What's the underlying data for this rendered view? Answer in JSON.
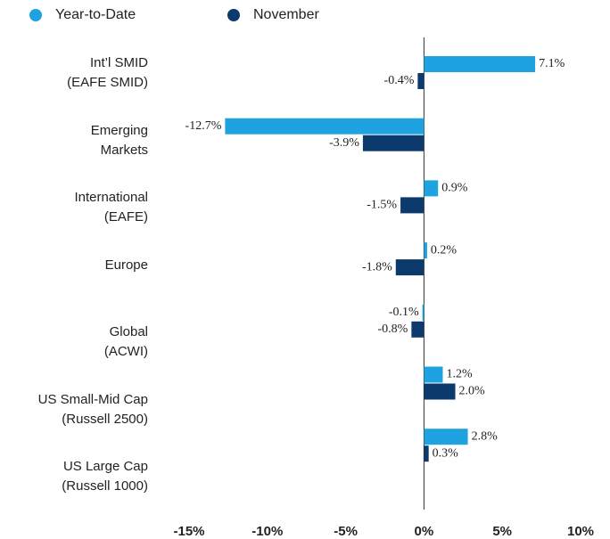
{
  "chart_data": {
    "type": "hbar",
    "categories": [
      "Int’l SMID\n(EAFE SMID)",
      "Emerging\nMarkets",
      "International\n(EAFE)",
      "Europe",
      "Global\n(ACWI)",
      "US Small-Mid Cap\n(Russell 2500)",
      "US Large Cap\n(Russell 1000)"
    ],
    "series": [
      {
        "name": "Year-to-Date",
        "color": "#1ea3e0",
        "values": [
          7.1,
          -12.7,
          0.9,
          0.2,
          -0.1,
          1.2,
          2.8
        ],
        "value_labels": [
          "7.1%",
          "-12.7%",
          "0.9%",
          "0.2%",
          "-0.1%",
          "1.2%",
          "2.8%"
        ]
      },
      {
        "name": "November",
        "color": "#0d3a6d",
        "values": [
          -0.4,
          -3.9,
          -1.5,
          -1.8,
          -0.8,
          2.0,
          0.3
        ],
        "value_labels": [
          "-0.4%",
          "-3.9%",
          "-1.5%",
          "-1.8%",
          "-0.8%",
          "2.0%",
          "0.3%"
        ]
      }
    ],
    "xlim": [
      -15,
      10
    ],
    "xticks": [
      {
        "value": -15,
        "label": "-15%"
      },
      {
        "value": -10,
        "label": "-10%"
      },
      {
        "value": -5,
        "label": "-5%"
      },
      {
        "value": 0,
        "label": "0%"
      },
      {
        "value": 5,
        "label": "5%"
      },
      {
        "value": 10,
        "label": "10%"
      }
    ],
    "legend": "top-left"
  }
}
